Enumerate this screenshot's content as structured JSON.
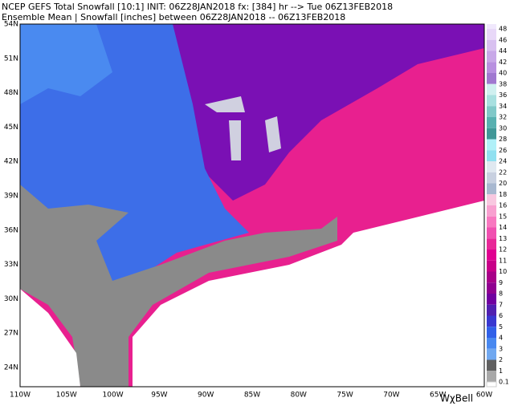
{
  "header": {
    "line1": "NCEP GEFS Total Snowfall [10:1] INIT: 06Z28JAN2018 fx: [384] hr --> Tue 06Z13FEB2018",
    "line2": "Ensemble Mean | Snowfall [inches] between 06Z28JAN2018 -- 06Z13FEB2018"
  },
  "map": {
    "lat_labels": [
      "54N",
      "51N",
      "48N",
      "45N",
      "42N",
      "39N",
      "36N",
      "33N",
      "30N",
      "27N",
      "24N"
    ],
    "lon_labels": [
      "110W",
      "105W",
      "100W",
      "95W",
      "90W",
      "85W",
      "80W",
      "75W",
      "70W",
      "65W",
      "60W"
    ]
  },
  "colorbar": {
    "labels": [
      "48",
      "46",
      "44",
      "42",
      "40",
      "38",
      "36",
      "34",
      "32",
      "30",
      "28",
      "26",
      "24",
      "22",
      "20",
      "18",
      "16",
      "15",
      "14",
      "13",
      "12",
      "11",
      "10",
      "9",
      "8",
      "7",
      "6",
      "5",
      "4",
      "3",
      "2",
      "1",
      "0.1"
    ],
    "colors": [
      "#e8d8f8",
      "#d8c0f0",
      "#c8a8e8",
      "#b890e0",
      "#a078d0",
      "#d0f0f0",
      "#a8e0e0",
      "#80c8c8",
      "#58b0b0",
      "#409898",
      "#b0f0f8",
      "#90e0f0",
      "#e0e8f0",
      "#c8d0e0",
      "#a8b8d0",
      "#f8c8e0",
      "#f8a0d0",
      "#f878c0",
      "#f050b0",
      "#e82898",
      "#e00090",
      "#c80088",
      "#a80088",
      "#900090",
      "#7000a0",
      "#5020b0",
      "#3838d0",
      "#3060e8",
      "#4888f0",
      "#70a8f0",
      "#606060",
      "#a8a8a8"
    ]
  },
  "logo": "WχBell"
}
